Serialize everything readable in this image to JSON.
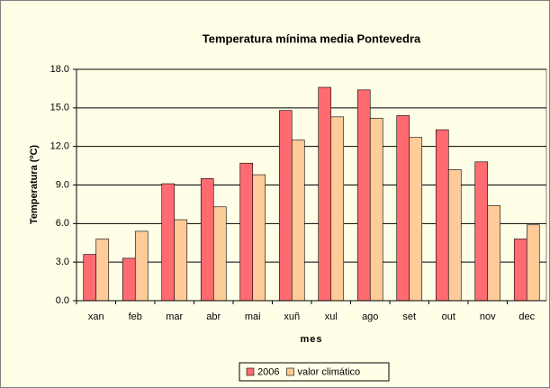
{
  "chart_data": {
    "type": "bar",
    "title": "Temperatura mínima media  Pontevedra",
    "x_label": "mes",
    "y_label": "Temperatura (ºC)",
    "categories": [
      "xan",
      "feb",
      "mar",
      "abr",
      "mai",
      "xuñ",
      "xul",
      "ago",
      "set",
      "out",
      "nov",
      "dec"
    ],
    "series": [
      {
        "name": "2006",
        "color": "#ff6b70",
        "values": [
          3.6,
          3.3,
          9.1,
          9.5,
          10.7,
          14.8,
          16.6,
          16.4,
          14.4,
          13.3,
          10.8,
          4.8
        ]
      },
      {
        "name": "valor climático",
        "color": "#ffcc99",
        "values": [
          4.8,
          5.4,
          6.3,
          7.3,
          9.8,
          12.5,
          14.3,
          14.2,
          12.7,
          10.2,
          7.4,
          5.9
        ]
      }
    ],
    "ylim": [
      0,
      18
    ],
    "yticks": [
      {
        "value": 0,
        "label": "0.0"
      },
      {
        "value": 3,
        "label": "3.0"
      },
      {
        "value": 6,
        "label": "6.0"
      },
      {
        "value": 9,
        "label": "9.0"
      },
      {
        "value": 12,
        "label": "12.0"
      },
      {
        "value": 15,
        "label": "15.0"
      },
      {
        "value": 18,
        "label": "18.0"
      }
    ],
    "grid": true,
    "legend": "bottom"
  }
}
